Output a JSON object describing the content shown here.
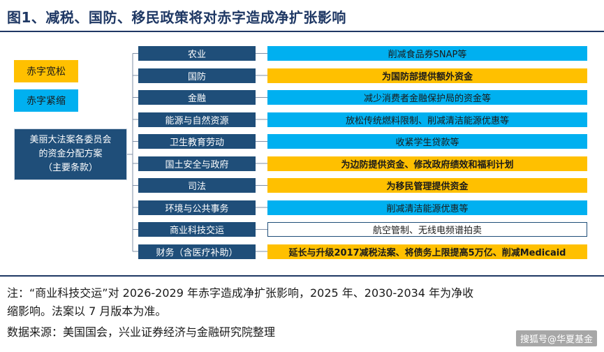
{
  "title": "图1、减税、国防、移民政策将对赤字造成净扩张影响",
  "legend": {
    "loose": "赤字宽松",
    "tight": "赤字紧缩"
  },
  "root": {
    "line1": "美丽大法案各委员会",
    "line2": "的资金分配方案",
    "line3": "（主要条款）"
  },
  "rows": [
    {
      "category": "农业",
      "effect": "削减食品券SNAP等",
      "kind": "tight"
    },
    {
      "category": "国防",
      "effect": "为国防部提供额外资金",
      "kind": "loose"
    },
    {
      "category": "金融",
      "effect": "减少消费者金融保护局的资金等",
      "kind": "tight"
    },
    {
      "category": "能源与自然资源",
      "effect": "放松传统燃料限制、削减清洁能源优惠等",
      "kind": "tight"
    },
    {
      "category": "卫生教育劳动",
      "effect": "收紧学生贷款等",
      "kind": "tight"
    },
    {
      "category": "国土安全与政府",
      "effect": "为边防提供资金、修改政府绩效和福利计划",
      "kind": "loose"
    },
    {
      "category": "司法",
      "effect": "为移民管理提供资金",
      "kind": "loose"
    },
    {
      "category": "环境与公共事务",
      "effect": "削减清洁能源优惠等",
      "kind": "tight"
    },
    {
      "category": "商业科技交运",
      "effect": "航空管制、无线电频谱拍卖",
      "kind": "neutral"
    },
    {
      "category": "财务（含医疗补助）",
      "effect": "延长与升级2017减税法案、将债务上限提高5万亿、削减Medicaid",
      "kind": "loose"
    }
  ],
  "colors": {
    "loose": "#ffc000",
    "tight": "#00b0f0",
    "category": "#1f4e79",
    "title": "#1f3864"
  },
  "notes": {
    "line1": "注：“商业科技交运”对 2026-2029 年赤字造成净扩张影响，2025 年、2030-2034 年为净收",
    "line2": "缩影响。法案以 7 月版本为准。",
    "line3": "数据来源：美国国会，兴业证券经济与金融研究院整理"
  },
  "watermark": "搜狐号@华夏基金"
}
